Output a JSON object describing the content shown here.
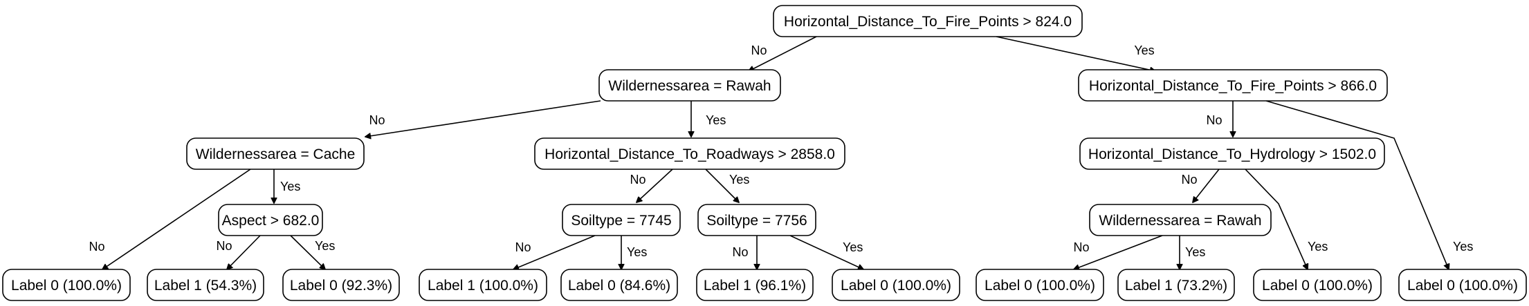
{
  "tree": {
    "nodes": {
      "root": "Horizontal_Distance_To_Fire_Points > 824.0",
      "n_left": "Wildernessarea = Rawah",
      "n_right": "Horizontal_Distance_To_Fire_Points > 866.0",
      "n_ll": "Wildernessarea = Cache",
      "n_lr": "Horizontal_Distance_To_Roadways > 2858.0",
      "n_rl": "Horizontal_Distance_To_Hydrology > 1502.0",
      "n_llr": "Aspect > 682.0",
      "n_lrl": "Soiltype = 7745",
      "n_lrr": "Soiltype = 7756",
      "n_rll": "Wildernessarea = Rawah",
      "leaf1": "Label 0 (100.0%)",
      "leaf2": "Label 1 (54.3%)",
      "leaf3": "Label 0 (92.3%)",
      "leaf4": "Label 1 (100.0%)",
      "leaf5": "Label 0 (84.6%)",
      "leaf6": "Label 1 (96.1%)",
      "leaf7": "Label 0 (100.0%)",
      "leaf8": "Label 0 (100.0%)",
      "leaf9": "Label 1 (73.2%)",
      "leaf10": "Label 0 (100.0%)",
      "leaf11": "Label 0 (100.0%)"
    },
    "edges": [
      {
        "from": "root",
        "to": "n_left",
        "label": "No"
      },
      {
        "from": "root",
        "to": "n_right",
        "label": "Yes"
      },
      {
        "from": "n_left",
        "to": "n_ll",
        "label": "No"
      },
      {
        "from": "n_left",
        "to": "n_lr",
        "label": "Yes"
      },
      {
        "from": "n_ll",
        "to": "leaf1",
        "label": "No"
      },
      {
        "from": "n_ll",
        "to": "n_llr",
        "label": "Yes"
      },
      {
        "from": "n_llr",
        "to": "leaf2",
        "label": "No"
      },
      {
        "from": "n_llr",
        "to": "leaf3",
        "label": "Yes"
      },
      {
        "from": "n_lr",
        "to": "n_lrl",
        "label": "No"
      },
      {
        "from": "n_lr",
        "to": "n_lrr",
        "label": "Yes"
      },
      {
        "from": "n_lrl",
        "to": "leaf4",
        "label": "No"
      },
      {
        "from": "n_lrl",
        "to": "leaf5",
        "label": "Yes"
      },
      {
        "from": "n_lrr",
        "to": "leaf6",
        "label": "No"
      },
      {
        "from": "n_lrr",
        "to": "leaf7",
        "label": "Yes"
      },
      {
        "from": "n_right",
        "to": "n_rl",
        "label": "No"
      },
      {
        "from": "n_right",
        "to": "leaf11",
        "label": "Yes"
      },
      {
        "from": "n_rl",
        "to": "n_rll",
        "label": "No"
      },
      {
        "from": "n_rl",
        "to": "leaf10",
        "label": "Yes"
      },
      {
        "from": "n_rll",
        "to": "leaf8",
        "label": "No"
      },
      {
        "from": "n_rll",
        "to": "leaf9",
        "label": "Yes"
      }
    ]
  }
}
